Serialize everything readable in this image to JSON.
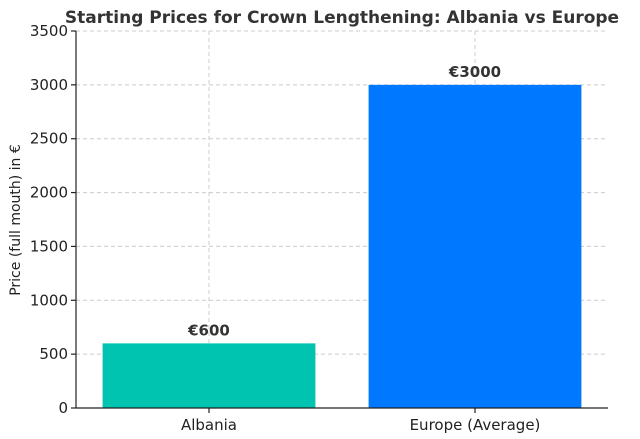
{
  "chart_data": {
    "type": "bar",
    "title": "Starting Prices for Crown Lengthening: Albania vs Europe",
    "xlabel": "",
    "ylabel": "Price (full mouth) in €",
    "categories": [
      "Albania",
      "Europe (Average)"
    ],
    "values": [
      600,
      3000
    ],
    "data_labels": [
      "€600",
      "€3000"
    ],
    "colors": [
      "#00c4b0",
      "#0078ff"
    ],
    "ylim": [
      0,
      3500
    ],
    "yticks": [
      0,
      500,
      1000,
      1500,
      2000,
      2500,
      3000,
      3500
    ],
    "grid": true,
    "legend": "none"
  }
}
